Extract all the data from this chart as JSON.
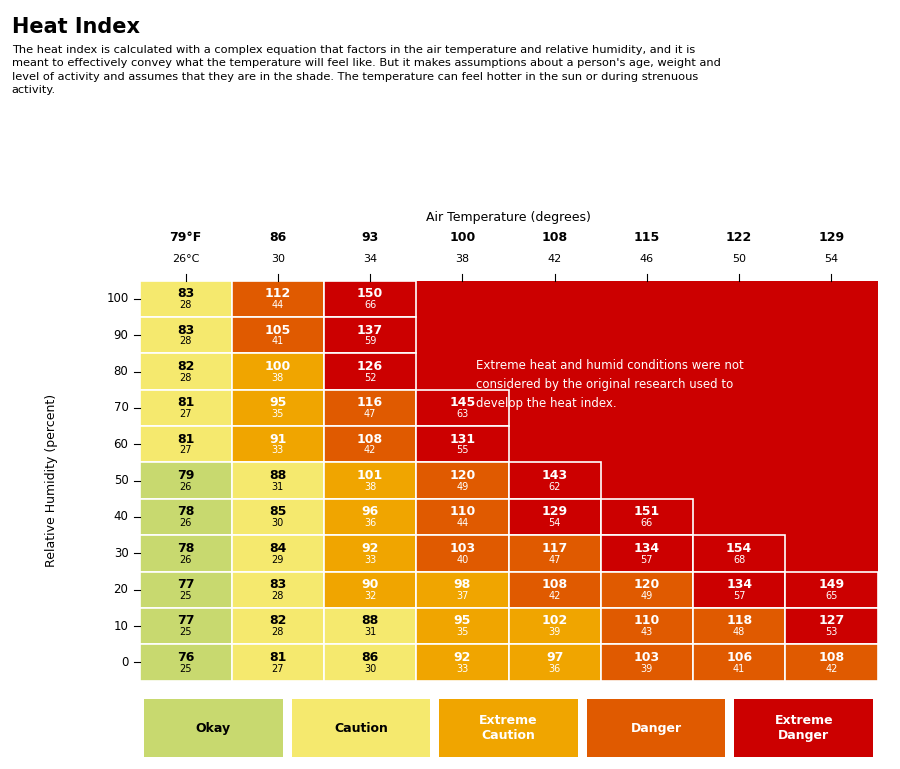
{
  "title": "Heat Index",
  "subtitle": "The heat index is calculated with a complex equation that factors in the air temperature and relative humidity, and it is\nmeant to effectively convey what the temperature will feel like. But it makes assumptions about a person's age, weight and\nlevel of activity and assumes that they are in the shade. The temperature can feel hotter in the sun or during strenuous\nactivity.",
  "xlabel": "Air Temperature (degrees)",
  "ylabel": "Relative Humidity (percent)",
  "temp_labels_f": [
    "79°F",
    "86",
    "93",
    "100",
    "108",
    "115",
    "122",
    "129"
  ],
  "temp_labels_c": [
    "26°C",
    "30",
    "34",
    "38",
    "42",
    "46",
    "50",
    "54"
  ],
  "humidity": [
    100,
    90,
    80,
    70,
    60,
    50,
    40,
    30,
    20,
    10,
    0
  ],
  "heat_index_f": [
    [
      83,
      112,
      150,
      null,
      null,
      null,
      null,
      null
    ],
    [
      83,
      105,
      137,
      null,
      null,
      null,
      null,
      null
    ],
    [
      82,
      100,
      126,
      null,
      null,
      null,
      null,
      null
    ],
    [
      81,
      95,
      116,
      145,
      null,
      null,
      null,
      null
    ],
    [
      81,
      91,
      108,
      131,
      null,
      null,
      null,
      null
    ],
    [
      79,
      88,
      101,
      120,
      143,
      null,
      null,
      null
    ],
    [
      78,
      85,
      96,
      110,
      129,
      151,
      null,
      null
    ],
    [
      78,
      84,
      92,
      103,
      117,
      134,
      154,
      null
    ],
    [
      77,
      83,
      90,
      98,
      108,
      120,
      134,
      149
    ],
    [
      77,
      82,
      88,
      95,
      102,
      110,
      118,
      127
    ],
    [
      76,
      81,
      86,
      92,
      97,
      103,
      106,
      108
    ]
  ],
  "heat_index_c": [
    [
      28,
      44,
      66,
      null,
      null,
      null,
      null,
      null
    ],
    [
      28,
      41,
      59,
      null,
      null,
      null,
      null,
      null
    ],
    [
      28,
      38,
      52,
      null,
      null,
      null,
      null,
      null
    ],
    [
      27,
      35,
      47,
      63,
      null,
      null,
      null,
      null
    ],
    [
      27,
      33,
      42,
      55,
      null,
      null,
      null,
      null
    ],
    [
      26,
      31,
      38,
      49,
      62,
      null,
      null,
      null
    ],
    [
      26,
      30,
      36,
      44,
      54,
      66,
      null,
      null
    ],
    [
      26,
      29,
      33,
      40,
      47,
      57,
      68,
      null
    ],
    [
      25,
      28,
      32,
      37,
      42,
      49,
      57,
      65
    ],
    [
      25,
      28,
      31,
      35,
      39,
      43,
      48,
      53
    ],
    [
      25,
      27,
      30,
      33,
      36,
      39,
      41,
      42
    ]
  ],
  "colors": {
    "okay": "#c8d96f",
    "caution": "#f5e96e",
    "extreme_caution": "#f0a500",
    "danger": "#e05a00",
    "extreme_danger": "#cc0000",
    "cell_border": "#ffffff"
  },
  "legend": [
    {
      "label": "Okay",
      "color": "#c8d96f",
      "text_color": "#000000"
    },
    {
      "label": "Caution",
      "color": "#f5e96e",
      "text_color": "#000000"
    },
    {
      "label": "Extreme\nCaution",
      "color": "#f0a500",
      "text_color": "#ffffff"
    },
    {
      "label": "Danger",
      "color": "#e05a00",
      "text_color": "#ffffff"
    },
    {
      "label": "Extreme\nDanger",
      "color": "#cc0000",
      "text_color": "#ffffff"
    }
  ],
  "note_text": "Extreme heat and humid conditions were not\nconsidered by the original research used to\ndevelop the heat index.",
  "background": "#ffffff"
}
